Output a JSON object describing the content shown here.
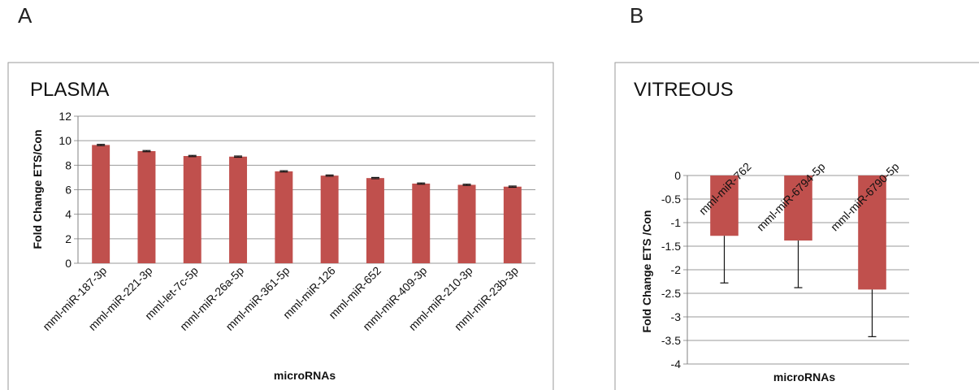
{
  "panels": {
    "a_label": "A",
    "b_label": "B"
  },
  "chart_data": [
    {
      "type": "bar",
      "title": "PLASMA",
      "xlabel": "microRNAs",
      "ylabel": "Fold Change ETS/Con",
      "ylim": [
        0,
        12
      ],
      "yticks": [
        0,
        2,
        4,
        6,
        8,
        10,
        12
      ],
      "ytick_labels": [
        "0",
        "2",
        "4",
        "6",
        "8",
        "10",
        "12"
      ],
      "categories": [
        "mml-miR-187-3p",
        "mml-miR-221-3p",
        "mml-let-7c-5p",
        "mml-miR-26a-5p",
        "mml-miR-361-5p",
        "mml-miR-126",
        "mml-miR-652",
        "mml-miR-409-3p",
        "mml-miR-210-3p",
        "mml-miR-23b-3p"
      ],
      "values": [
        9.65,
        9.15,
        8.75,
        8.7,
        7.5,
        7.15,
        6.95,
        6.5,
        6.4,
        6.25
      ],
      "errors": [
        0.05,
        0.05,
        0.05,
        0.05,
        0.05,
        0.05,
        0.05,
        0.05,
        0.05,
        0.05
      ],
      "grid": true,
      "bar_color": "#c0504d"
    },
    {
      "type": "bar",
      "title": "VITREOUS",
      "xlabel": "microRNAs",
      "ylabel": "Fold Change  ETS /Con",
      "ylim": [
        -4,
        0
      ],
      "yticks": [
        0,
        -0.5,
        -1,
        -1.5,
        -2,
        -2.5,
        -3,
        -3.5,
        -4
      ],
      "ytick_labels": [
        "0",
        "-0.5",
        "-1",
        "-1.5",
        "-2",
        "-2.5",
        "-3",
        "-3.5",
        "-4"
      ],
      "categories": [
        "mml-miR-762",
        "mml-miR-6794-5p",
        "mml-miR-6790-5p"
      ],
      "values": [
        -1.28,
        -1.38,
        -2.42
      ],
      "errors": [
        1.0,
        1.0,
        1.0
      ],
      "grid": true,
      "bar_color": "#c0504d"
    }
  ]
}
